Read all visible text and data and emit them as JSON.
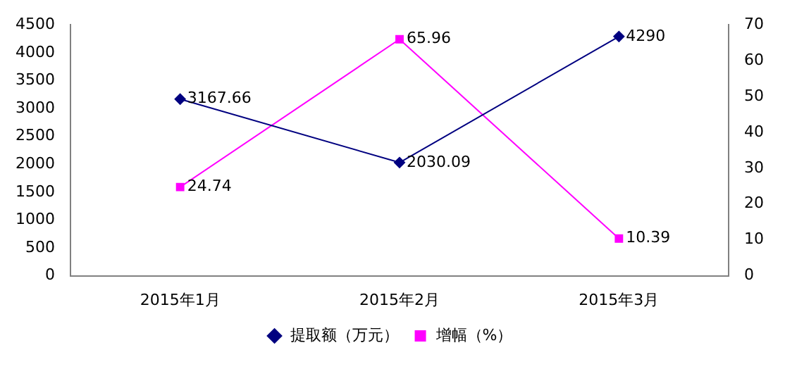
{
  "chart_data": {
    "type": "line",
    "categories": [
      "2015年1月",
      "2015年2月",
      "2015年3月"
    ],
    "series": [
      {
        "name": "提取额（万元）",
        "color": "#000080",
        "values": [
          3167.66,
          2030.09,
          4290
        ],
        "marker": "diamond"
      },
      {
        "name": "增幅（%）",
        "color": "#ff00ff",
        "values": [
          24.74,
          65.96,
          10.39
        ],
        "axis": "y2",
        "marker": "square"
      }
    ],
    "ylim": [
      0,
      4500
    ],
    "yticks": [
      0,
      500,
      1000,
      1500,
      2000,
      2500,
      3000,
      3500,
      4000,
      4500
    ],
    "y2lim": [
      0,
      70
    ],
    "y2ticks": [
      0,
      10,
      20,
      30,
      40,
      50,
      60,
      70
    ],
    "data_labels": true,
    "legend": "bottom",
    "grid": false,
    "line_style": "solid"
  }
}
